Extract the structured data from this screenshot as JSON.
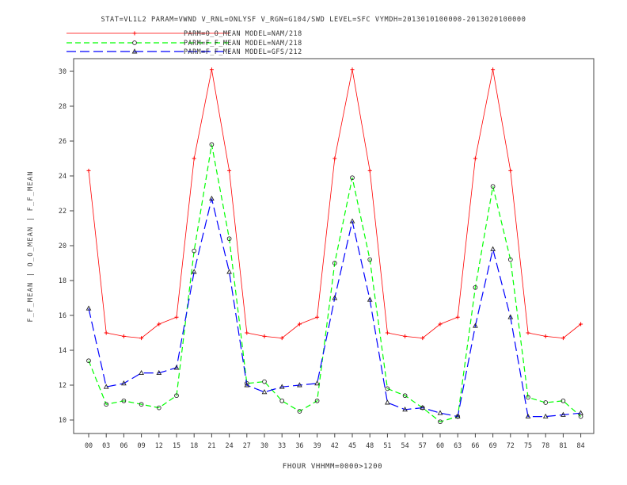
{
  "header": {
    "title": "STAT=VL1L2 PARAM=VWND V_RNL=ONLYSF V_RGN=G104/SWD LEVEL=SFC VYMDH=2013010100000-2013020100000",
    "legend": [
      "PARM=O_O_MEAN MODEL=NAM/218",
      "PARM=F_F_MEAN MODEL=NAM/218",
      "PARM=F_F_MEAN MODEL=GFS/212"
    ]
  },
  "chart_data": {
    "type": "line",
    "title": "STAT=VL1L2 PARAM=VWND V_RNL=ONLYSF V_RGN=G104/SWD LEVEL=SFC VYMDH=2013010100000-2013020100000",
    "xlabel": "FHOUR VHHMM=0000>1200",
    "ylabel": "F_F_MEAN | O_O_MEAN | F_F_MEAN",
    "categories": [
      "00",
      "03",
      "06",
      "09",
      "12",
      "15",
      "18",
      "21",
      "24",
      "27",
      "30",
      "33",
      "36",
      "39",
      "42",
      "45",
      "48",
      "51",
      "54",
      "57",
      "60",
      "63",
      "66",
      "69",
      "72",
      "75",
      "78",
      "81",
      "84"
    ],
    "yticks": [
      10,
      12,
      14,
      16,
      18,
      20,
      22,
      24,
      26,
      28,
      30
    ],
    "ylim": [
      9.7,
      30.5
    ],
    "grid": false,
    "legend_position": "top-left",
    "series": [
      {
        "name": "PARM=O_O_MEAN MODEL=NAM/218",
        "color": "#ff0000",
        "dash": "solid",
        "marker": "plus",
        "values": [
          24.3,
          15.0,
          14.8,
          14.7,
          15.5,
          15.9,
          25.0,
          30.1,
          24.3,
          15.0,
          14.8,
          14.7,
          15.5,
          15.9,
          25.0,
          30.1,
          24.3,
          15.0,
          14.8,
          14.7,
          15.5,
          15.9,
          25.0,
          30.1,
          24.3,
          15.0,
          14.8,
          14.7,
          15.5
        ]
      },
      {
        "name": "PARM=F_F_MEAN MODEL=NAM/218",
        "color": "#00ff00",
        "dash": "dashed",
        "marker": "circle",
        "values": [
          13.4,
          10.9,
          11.1,
          10.9,
          10.7,
          11.4,
          19.7,
          25.8,
          20.4,
          12.1,
          12.2,
          11.1,
          10.5,
          11.1,
          19.0,
          23.9,
          19.2,
          11.8,
          11.4,
          10.7,
          9.9,
          10.2,
          17.6,
          23.4,
          19.2,
          11.3,
          11.0,
          11.1,
          10.2
        ]
      },
      {
        "name": "PARM=F_F_MEAN MODEL=GFS/212",
        "color": "#0000ff",
        "dash": "longdash",
        "marker": "triangle",
        "values": [
          16.4,
          11.9,
          12.1,
          12.7,
          12.7,
          13.0,
          18.5,
          22.7,
          18.5,
          12.0,
          11.6,
          11.9,
          12.0,
          12.1,
          17.0,
          21.4,
          16.9,
          11.0,
          10.6,
          10.7,
          10.4,
          10.2,
          15.4,
          19.8,
          15.9,
          10.2,
          10.2,
          10.3,
          10.4
        ]
      }
    ]
  }
}
